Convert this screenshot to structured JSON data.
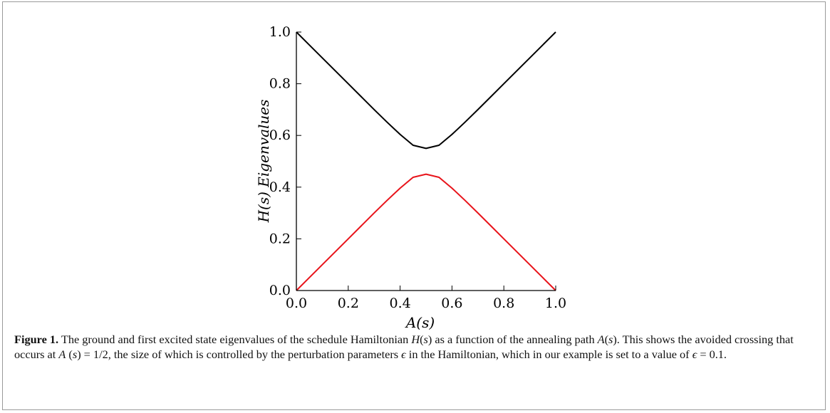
{
  "figure": {
    "label": "Figure 1.",
    "caption_parts": [
      {
        "text": " The ground and first excited state eigenvalues of the schedule Hamiltonian ",
        "style": "normal"
      },
      {
        "text": "H",
        "style": "math"
      },
      {
        "text": "(",
        "style": "normal"
      },
      {
        "text": "s",
        "style": "math"
      },
      {
        "text": ") as a function of the annealing path ",
        "style": "normal"
      },
      {
        "text": "A",
        "style": "math"
      },
      {
        "text": "(",
        "style": "normal"
      },
      {
        "text": "s",
        "style": "math"
      },
      {
        "text": "). This shows the avoided crossing that occurs at ",
        "style": "normal"
      },
      {
        "text": "A",
        "style": "math"
      },
      {
        "text": " (",
        "style": "normal"
      },
      {
        "text": "s",
        "style": "math"
      },
      {
        "text": ") = 1/2, the size of which is controlled by the perturbation parameters ",
        "style": "normal"
      },
      {
        "text": "ϵ",
        "style": "math"
      },
      {
        "text": " in the Hamiltonian, which in our example is set to a value of ",
        "style": "normal"
      },
      {
        "text": "ϵ",
        "style": "math"
      },
      {
        "text": " = 0.1.",
        "style": "normal"
      }
    ]
  },
  "chart_data": {
    "type": "line",
    "xlabel": "A(s)",
    "ylabel": "H(s) Eigenvalues",
    "xlim": [
      0.0,
      1.0
    ],
    "ylim": [
      0.0,
      1.0
    ],
    "x_ticks": [
      "0.0",
      "0.2",
      "0.4",
      "0.6",
      "0.8",
      "1.0"
    ],
    "y_ticks": [
      "0.0",
      "0.2",
      "0.4",
      "0.6",
      "0.8",
      "1.0"
    ],
    "grid": false,
    "legend": false,
    "series": [
      {
        "color": "#000000",
        "x": [
          0.0,
          0.05,
          0.1,
          0.15,
          0.2,
          0.25,
          0.3,
          0.35,
          0.4,
          0.45,
          0.5,
          0.55,
          0.6,
          0.65,
          0.7,
          0.75,
          0.8,
          0.85,
          0.9,
          0.95,
          1.0
        ],
        "y": [
          1.0,
          0.95,
          0.9,
          0.85,
          0.8,
          0.75,
          0.7,
          0.651,
          0.604,
          0.562,
          0.55,
          0.562,
          0.604,
          0.651,
          0.7,
          0.75,
          0.8,
          0.85,
          0.9,
          0.95,
          1.0
        ]
      },
      {
        "color": "#e8141b",
        "x": [
          0.0,
          0.05,
          0.1,
          0.15,
          0.2,
          0.25,
          0.3,
          0.35,
          0.4,
          0.45,
          0.5,
          0.55,
          0.6,
          0.65,
          0.7,
          0.75,
          0.8,
          0.85,
          0.9,
          0.95,
          1.0
        ],
        "y": [
          0.0,
          0.05,
          0.1,
          0.15,
          0.2,
          0.25,
          0.3,
          0.349,
          0.396,
          0.438,
          0.45,
          0.438,
          0.396,
          0.349,
          0.3,
          0.25,
          0.2,
          0.15,
          0.1,
          0.05,
          0.0
        ]
      }
    ]
  }
}
